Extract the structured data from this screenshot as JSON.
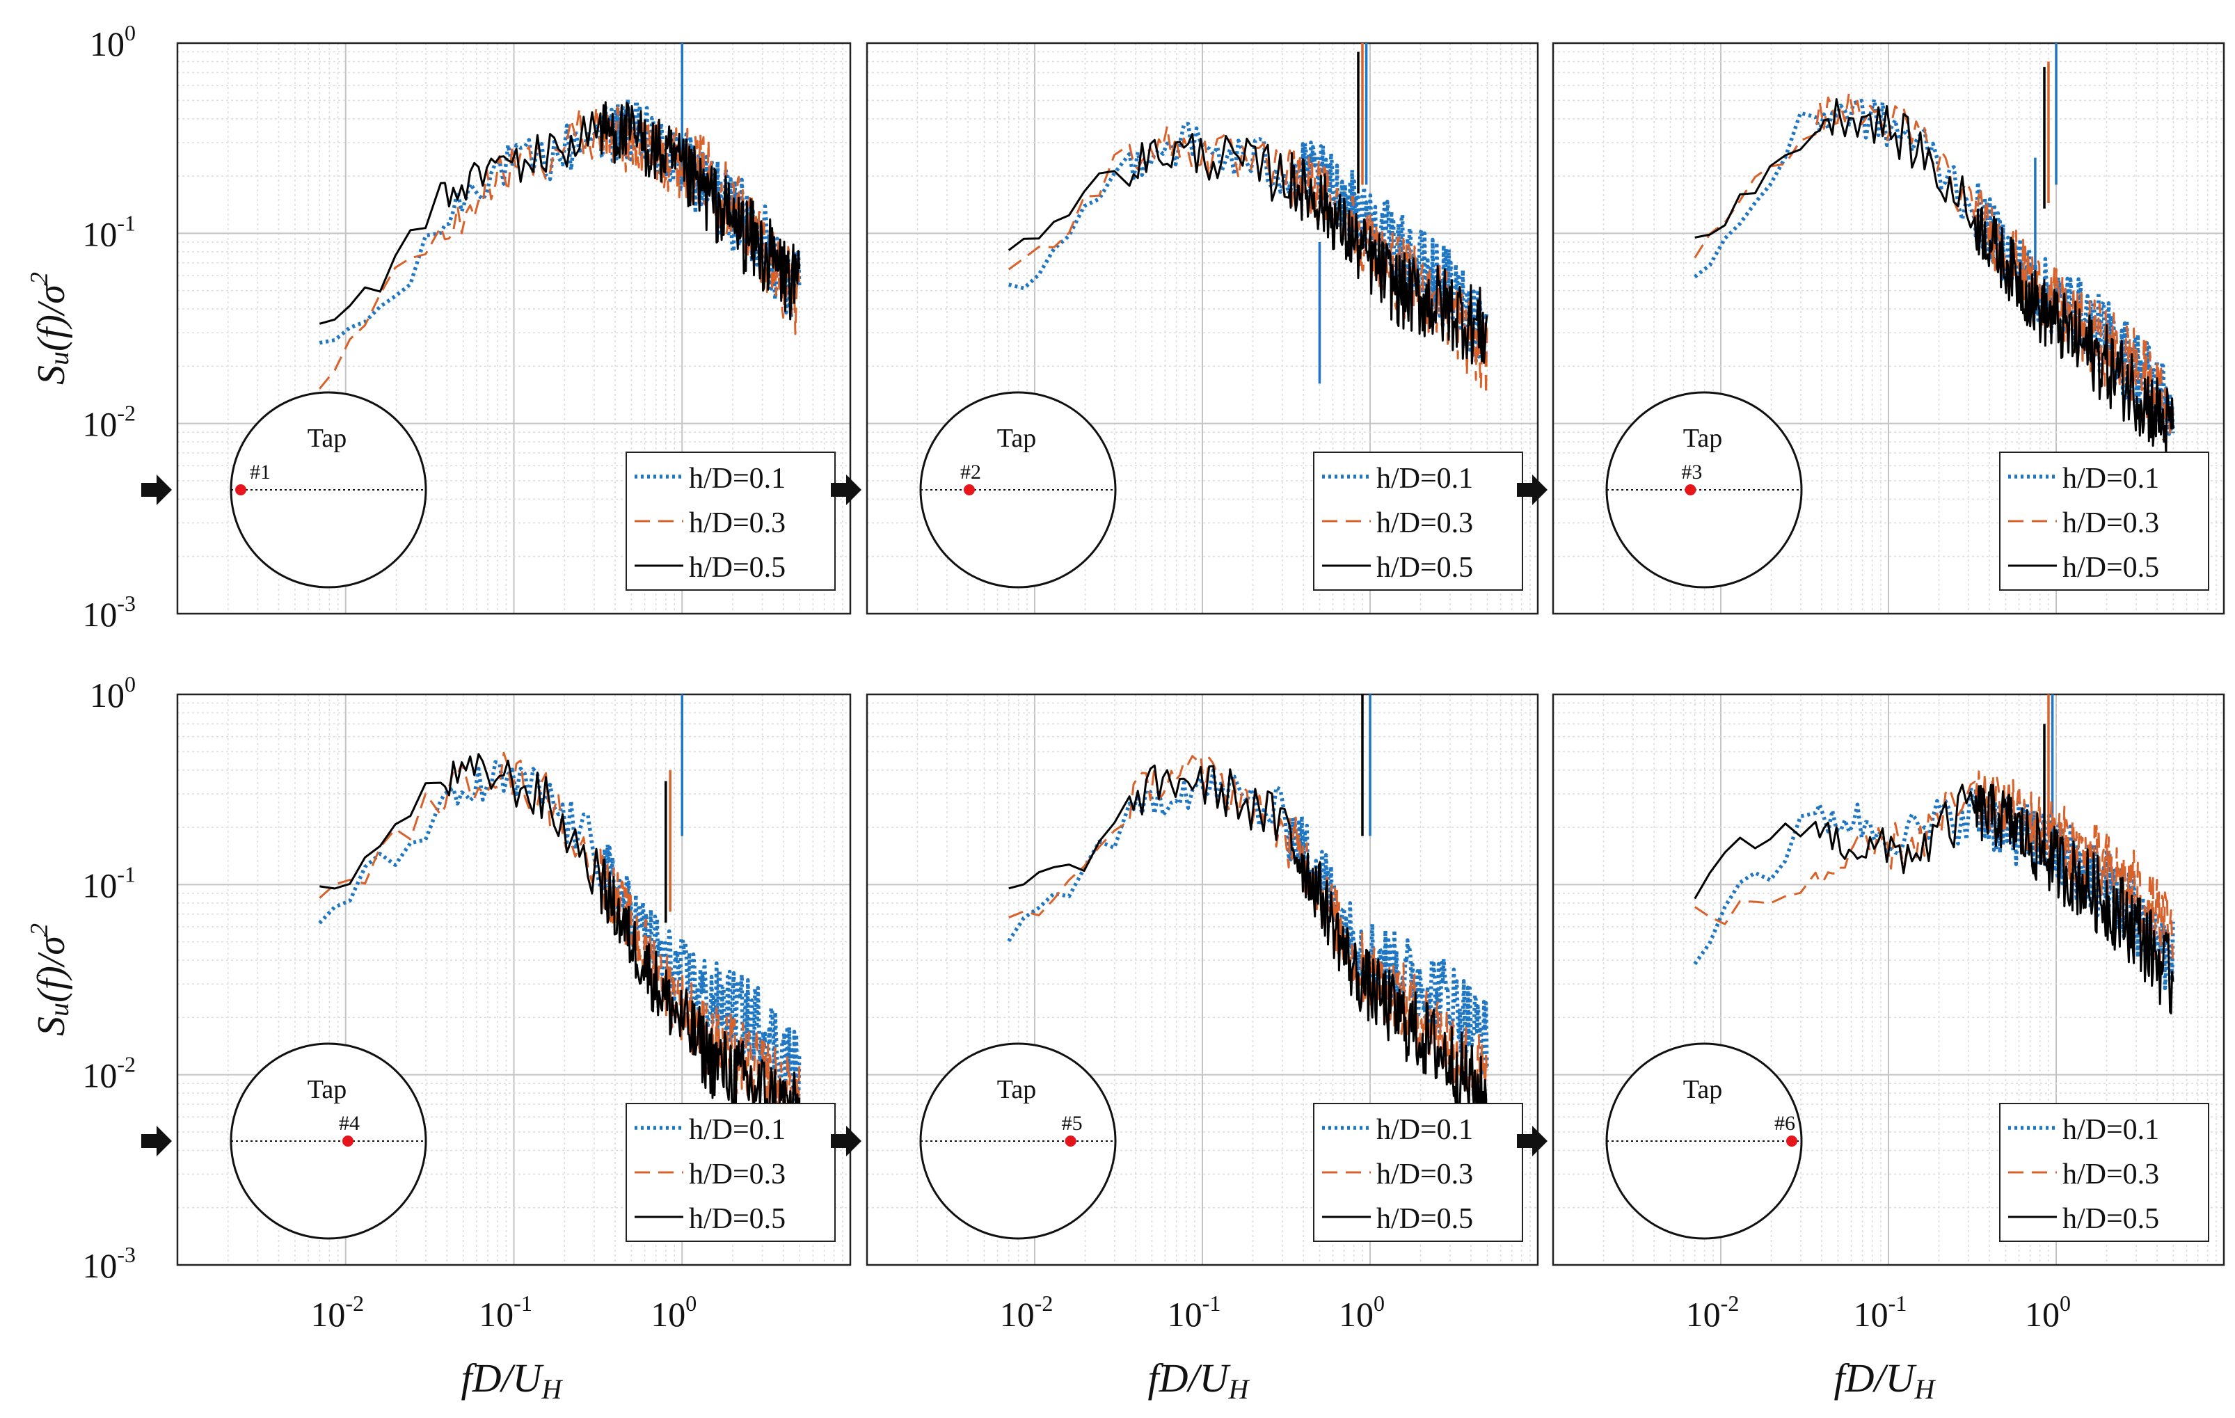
{
  "figure": {
    "ylabel_parts": [
      "S",
      "u",
      "(f)/σ",
      "2"
    ],
    "xlabel_parts": [
      "fD/U",
      "H"
    ],
    "circle_label": "Tap",
    "legend": [
      "h/D=0.1",
      "h/D=0.3",
      "h/D=0.5"
    ],
    "colors": {
      "h01": "#1f77c4",
      "h03": "#d9622b",
      "h05": "#000000",
      "tap": "#e8141c"
    }
  },
  "chart_data": [
    {
      "type": "line",
      "xscale": "log",
      "yscale": "log",
      "xlim": [
        0.001,
        10
      ],
      "ylim": [
        0.001,
        1
      ],
      "x_ticks": [
        "10^-2",
        "10^-1",
        "10^0"
      ],
      "y_ticks": [
        "10^0",
        "10^-1",
        "10^-2",
        "10^-3"
      ],
      "grid": true,
      "legend_position": "bottom-right",
      "tap_label": "#1",
      "tap_position": 0.05,
      "series": [
        {
          "name": "h/D=0.1",
          "style": "dotted",
          "x": [
            0.007,
            0.012,
            0.02,
            0.03,
            0.05,
            0.08,
            0.15,
            0.3,
            0.5,
            0.8,
            1.5,
            3,
            5
          ],
          "y": [
            0.024,
            0.034,
            0.045,
            0.08,
            0.16,
            0.22,
            0.24,
            0.33,
            0.35,
            0.26,
            0.17,
            0.09,
            0.05
          ],
          "spikes": [
            {
              "x": 1.0,
              "y": 1.0
            }
          ]
        },
        {
          "name": "h/D=0.3",
          "style": "dashed",
          "x": [
            0.007,
            0.012,
            0.02,
            0.03,
            0.05,
            0.08,
            0.15,
            0.3,
            0.5,
            0.8,
            1.5,
            3,
            5
          ],
          "y": [
            0.017,
            0.03,
            0.06,
            0.085,
            0.12,
            0.2,
            0.26,
            0.35,
            0.3,
            0.26,
            0.2,
            0.09,
            0.04
          ],
          "spikes": []
        },
        {
          "name": "h/D=0.5",
          "style": "solid",
          "x": [
            0.007,
            0.012,
            0.02,
            0.03,
            0.05,
            0.08,
            0.15,
            0.3,
            0.5,
            0.8,
            1.5,
            3,
            5
          ],
          "y": [
            0.032,
            0.045,
            0.065,
            0.13,
            0.18,
            0.23,
            0.25,
            0.36,
            0.33,
            0.25,
            0.15,
            0.08,
            0.05
          ],
          "spikes": []
        }
      ]
    },
    {
      "type": "line",
      "xscale": "log",
      "yscale": "log",
      "xlim": [
        0.001,
        10
      ],
      "ylim": [
        0.001,
        1
      ],
      "x_ticks": [
        "10^-2",
        "10^-1",
        "10^0"
      ],
      "y_ticks": [
        "10^0",
        "10^-1",
        "10^-2",
        "10^-3"
      ],
      "grid": true,
      "legend_position": "bottom-right",
      "tap_label": "#2",
      "tap_position": 0.25,
      "series": [
        {
          "name": "h/D=0.1",
          "style": "dotted",
          "x": [
            0.007,
            0.012,
            0.02,
            0.03,
            0.05,
            0.08,
            0.15,
            0.3,
            0.5,
            0.8,
            1.5,
            3,
            5
          ],
          "y": [
            0.048,
            0.07,
            0.13,
            0.2,
            0.28,
            0.3,
            0.25,
            0.22,
            0.2,
            0.14,
            0.08,
            0.05,
            0.03
          ],
          "spikes": [
            {
              "x": 0.95,
              "y": 1.0
            },
            {
              "x": 0.5,
              "y": 0.09
            }
          ]
        },
        {
          "name": "h/D=0.3",
          "style": "dashed",
          "x": [
            0.007,
            0.012,
            0.02,
            0.03,
            0.05,
            0.08,
            0.15,
            0.3,
            0.5,
            0.8,
            1.5,
            3,
            5
          ],
          "y": [
            0.07,
            0.08,
            0.15,
            0.22,
            0.3,
            0.28,
            0.24,
            0.2,
            0.17,
            0.11,
            0.06,
            0.04,
            0.02
          ],
          "spikes": [
            {
              "x": 0.9,
              "y": 1.0
            }
          ]
        },
        {
          "name": "h/D=0.5",
          "style": "solid",
          "x": [
            0.007,
            0.012,
            0.02,
            0.03,
            0.05,
            0.08,
            0.15,
            0.3,
            0.5,
            0.8,
            1.5,
            3,
            5
          ],
          "y": [
            0.09,
            0.11,
            0.16,
            0.2,
            0.26,
            0.27,
            0.24,
            0.2,
            0.15,
            0.09,
            0.05,
            0.04,
            0.03
          ],
          "spikes": [
            {
              "x": 0.85,
              "y": 0.9
            }
          ]
        }
      ]
    },
    {
      "type": "line",
      "xscale": "log",
      "yscale": "log",
      "xlim": [
        0.001,
        10
      ],
      "ylim": [
        0.001,
        1
      ],
      "x_ticks": [
        "10^-2",
        "10^-1",
        "10^0"
      ],
      "y_ticks": [
        "10^0",
        "10^-1",
        "10^-2",
        "10^-3"
      ],
      "grid": true,
      "legend_position": "bottom-right",
      "tap_label": "#3",
      "tap_position": 0.43,
      "series": [
        {
          "name": "h/D=0.1",
          "style": "dotted",
          "x": [
            0.007,
            0.012,
            0.02,
            0.03,
            0.05,
            0.08,
            0.15,
            0.3,
            0.5,
            0.8,
            1.5,
            3,
            5
          ],
          "y": [
            0.06,
            0.1,
            0.2,
            0.35,
            0.45,
            0.4,
            0.3,
            0.15,
            0.08,
            0.05,
            0.035,
            0.02,
            0.012
          ],
          "spikes": [
            {
              "x": 1.0,
              "y": 1.0
            },
            {
              "x": 0.75,
              "y": 0.25
            }
          ]
        },
        {
          "name": "h/D=0.3",
          "style": "dashed",
          "x": [
            0.007,
            0.012,
            0.02,
            0.03,
            0.05,
            0.08,
            0.15,
            0.3,
            0.5,
            0.8,
            1.5,
            3,
            5
          ],
          "y": [
            0.08,
            0.12,
            0.22,
            0.36,
            0.45,
            0.42,
            0.32,
            0.14,
            0.08,
            0.05,
            0.03,
            0.02,
            0.01
          ],
          "spikes": [
            {
              "x": 0.9,
              "y": 0.8
            }
          ]
        },
        {
          "name": "h/D=0.5",
          "style": "solid",
          "x": [
            0.007,
            0.012,
            0.02,
            0.03,
            0.05,
            0.08,
            0.15,
            0.3,
            0.5,
            0.8,
            1.5,
            3,
            5
          ],
          "y": [
            0.1,
            0.13,
            0.2,
            0.33,
            0.42,
            0.4,
            0.28,
            0.13,
            0.07,
            0.04,
            0.025,
            0.015,
            0.009
          ],
          "spikes": [
            {
              "x": 0.85,
              "y": 0.75
            }
          ]
        }
      ]
    },
    {
      "type": "line",
      "xscale": "log",
      "yscale": "log",
      "xlim": [
        0.001,
        10
      ],
      "ylim": [
        0.001,
        1
      ],
      "x_ticks": [
        "10^-2",
        "10^-1",
        "10^0"
      ],
      "y_ticks": [
        "10^0",
        "10^-1",
        "10^-2",
        "10^-3"
      ],
      "grid": true,
      "legend_position": "bottom-right",
      "tap_label": "#4",
      "tap_position": 0.6,
      "series": [
        {
          "name": "h/D=0.1",
          "style": "dotted",
          "x": [
            0.007,
            0.012,
            0.02,
            0.03,
            0.05,
            0.08,
            0.15,
            0.3,
            0.5,
            0.8,
            1.5,
            3,
            5
          ],
          "y": [
            0.065,
            0.1,
            0.15,
            0.2,
            0.3,
            0.35,
            0.3,
            0.15,
            0.07,
            0.04,
            0.025,
            0.018,
            0.01
          ],
          "spikes": [
            {
              "x": 1.0,
              "y": 1.0
            }
          ]
        },
        {
          "name": "h/D=0.3",
          "style": "dashed",
          "x": [
            0.007,
            0.012,
            0.02,
            0.03,
            0.05,
            0.08,
            0.15,
            0.3,
            0.5,
            0.8,
            1.5,
            3,
            5
          ],
          "y": [
            0.08,
            0.11,
            0.17,
            0.25,
            0.35,
            0.4,
            0.3,
            0.13,
            0.06,
            0.03,
            0.015,
            0.01,
            0.007
          ],
          "spikes": [
            {
              "x": 0.85,
              "y": 0.4
            }
          ]
        },
        {
          "name": "h/D=0.5",
          "style": "solid",
          "x": [
            0.007,
            0.012,
            0.02,
            0.03,
            0.05,
            0.08,
            0.15,
            0.3,
            0.5,
            0.8,
            1.5,
            3,
            5
          ],
          "y": [
            0.095,
            0.12,
            0.2,
            0.3,
            0.38,
            0.38,
            0.28,
            0.12,
            0.05,
            0.025,
            0.012,
            0.008,
            0.006
          ],
          "spikes": [
            {
              "x": 0.8,
              "y": 0.35
            }
          ]
        }
      ]
    },
    {
      "type": "line",
      "xscale": "log",
      "yscale": "log",
      "xlim": [
        0.001,
        10
      ],
      "ylim": [
        0.001,
        1
      ],
      "x_ticks": [
        "10^-2",
        "10^-1",
        "10^0"
      ],
      "y_ticks": [
        "10^0",
        "10^-1",
        "10^-2",
        "10^-3"
      ],
      "grid": true,
      "legend_position": "bottom-right",
      "tap_label": "#5",
      "tap_position": 0.77,
      "series": [
        {
          "name": "h/D=0.1",
          "style": "dotted",
          "x": [
            0.007,
            0.012,
            0.02,
            0.03,
            0.05,
            0.08,
            0.15,
            0.3,
            0.5,
            0.8,
            1.5,
            3,
            5
          ],
          "y": [
            0.055,
            0.08,
            0.12,
            0.18,
            0.28,
            0.33,
            0.3,
            0.22,
            0.12,
            0.05,
            0.035,
            0.025,
            0.015
          ],
          "spikes": [
            {
              "x": 1.0,
              "y": 1.0
            }
          ]
        },
        {
          "name": "h/D=0.3",
          "style": "dashed",
          "x": [
            0.007,
            0.012,
            0.02,
            0.03,
            0.05,
            0.08,
            0.15,
            0.3,
            0.5,
            0.8,
            1.5,
            3,
            5
          ],
          "y": [
            0.065,
            0.08,
            0.12,
            0.22,
            0.35,
            0.4,
            0.32,
            0.2,
            0.1,
            0.04,
            0.025,
            0.015,
            0.009
          ],
          "spikes": []
        },
        {
          "name": "h/D=0.5",
          "style": "solid",
          "x": [
            0.007,
            0.012,
            0.02,
            0.03,
            0.05,
            0.08,
            0.15,
            0.3,
            0.5,
            0.8,
            1.5,
            3,
            5
          ],
          "y": [
            0.09,
            0.11,
            0.14,
            0.2,
            0.33,
            0.36,
            0.3,
            0.2,
            0.09,
            0.035,
            0.02,
            0.012,
            0.007
          ],
          "spikes": [
            {
              "x": 0.9,
              "y": 1.0
            }
          ]
        }
      ]
    },
    {
      "type": "line",
      "xscale": "log",
      "yscale": "log",
      "xlim": [
        0.001,
        10
      ],
      "ylim": [
        0.001,
        1
      ],
      "x_ticks": [
        "10^-2",
        "10^-1",
        "10^0"
      ],
      "y_ticks": [
        "10^0",
        "10^-1",
        "10^-2",
        "10^-3"
      ],
      "grid": true,
      "legend_position": "bottom-right",
      "tap_label": "#6",
      "tap_position": 0.95,
      "series": [
        {
          "name": "h/D=0.1",
          "style": "dotted",
          "x": [
            0.007,
            0.012,
            0.02,
            0.03,
            0.05,
            0.08,
            0.15,
            0.3,
            0.5,
            0.8,
            1.5,
            3,
            5
          ],
          "y": [
            0.037,
            0.1,
            0.12,
            0.2,
            0.23,
            0.2,
            0.18,
            0.25,
            0.2,
            0.17,
            0.12,
            0.07,
            0.04
          ],
          "spikes": [
            {
              "x": 0.95,
              "y": 1.0
            }
          ]
        },
        {
          "name": "h/D=0.3",
          "style": "dashed",
          "x": [
            0.007,
            0.012,
            0.02,
            0.03,
            0.05,
            0.08,
            0.15,
            0.3,
            0.5,
            0.8,
            1.5,
            3,
            5
          ],
          "y": [
            0.075,
            0.07,
            0.08,
            0.1,
            0.12,
            0.15,
            0.17,
            0.28,
            0.25,
            0.2,
            0.14,
            0.09,
            0.05
          ],
          "spikes": [
            {
              "x": 0.9,
              "y": 1.0
            }
          ]
        },
        {
          "name": "h/D=0.5",
          "style": "solid",
          "x": [
            0.007,
            0.012,
            0.02,
            0.03,
            0.05,
            0.08,
            0.15,
            0.3,
            0.5,
            0.8,
            1.5,
            3,
            5
          ],
          "y": [
            0.09,
            0.15,
            0.18,
            0.22,
            0.17,
            0.15,
            0.15,
            0.25,
            0.22,
            0.15,
            0.1,
            0.06,
            0.03
          ],
          "spikes": [
            {
              "x": 0.85,
              "y": 0.7
            }
          ]
        }
      ]
    }
  ]
}
